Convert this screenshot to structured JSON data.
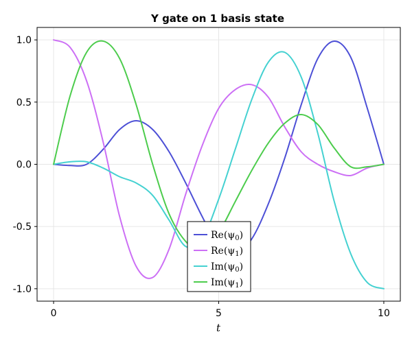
{
  "chart_data": {
    "type": "line",
    "title": "Y gate on 1 basis state",
    "xlabel": "t",
    "ylabel": "",
    "xlim": [
      -0.5,
      10.5
    ],
    "ylim": [
      -1.1,
      1.1
    ],
    "xticks": [
      0,
      5,
      10
    ],
    "xtick_labels": [
      "0",
      "5",
      "10"
    ],
    "yticks": [
      1.0,
      0.5,
      0.0,
      -0.5,
      -1.0
    ],
    "ytick_labels": [
      "1.0",
      "0.5",
      "0.0",
      "-0.5",
      "-1.0"
    ],
    "grid": true,
    "legend_placement": "bottom-center",
    "series": [
      {
        "name": "Re(ψ0)",
        "legend_main": "Re(ψ",
        "legend_sub": "0",
        "color": "#4c4fd6",
        "x": [
          0,
          0.5,
          1,
          1.5,
          2,
          2.5,
          3,
          3.5,
          4,
          4.5,
          5,
          5.5,
          6,
          6.5,
          7,
          7.5,
          8,
          8.5,
          9,
          9.5,
          10
        ],
        "y": [
          0.0,
          -0.01,
          0.0,
          0.12,
          0.28,
          0.35,
          0.28,
          0.1,
          -0.15,
          -0.42,
          -0.66,
          -0.72,
          -0.6,
          -0.32,
          0.05,
          0.48,
          0.85,
          0.99,
          0.86,
          0.45,
          0.0
        ]
      },
      {
        "name": "Re(ψ1)",
        "legend_main": "Re(ψ",
        "legend_sub": "1",
        "color": "#cc6ff5",
        "x": [
          0,
          0.5,
          1,
          1.5,
          2,
          2.5,
          3,
          3.5,
          4,
          4.5,
          5,
          5.5,
          6,
          6.5,
          7,
          7.5,
          8,
          8.5,
          9,
          9.5,
          10
        ],
        "y": [
          1.0,
          0.94,
          0.67,
          0.18,
          -0.42,
          -0.82,
          -0.91,
          -0.68,
          -0.24,
          0.15,
          0.45,
          0.6,
          0.64,
          0.54,
          0.3,
          0.1,
          0.0,
          -0.06,
          -0.09,
          -0.03,
          0.0
        ]
      },
      {
        "name": "Im(ψ0)",
        "legend_main": "Im(ψ",
        "legend_sub": "0",
        "color": "#44d1d1",
        "x": [
          0,
          0.5,
          1,
          1.5,
          2,
          2.5,
          3,
          3.5,
          4,
          4.5,
          5,
          5.5,
          6,
          6.5,
          7,
          7.5,
          8,
          8.5,
          9,
          9.5,
          10
        ],
        "y": [
          0.0,
          0.02,
          0.02,
          -0.03,
          -0.1,
          -0.15,
          -0.25,
          -0.45,
          -0.66,
          -0.6,
          -0.28,
          0.12,
          0.52,
          0.82,
          0.9,
          0.7,
          0.25,
          -0.3,
          -0.72,
          -0.95,
          -1.0
        ]
      },
      {
        "name": "Im(ψ1)",
        "legend_main": "Im(ψ",
        "legend_sub": "1",
        "color": "#4ccc4c",
        "x": [
          0,
          0.5,
          1,
          1.5,
          2,
          2.5,
          3,
          3.5,
          4,
          4.5,
          5,
          5.5,
          6,
          6.5,
          7,
          7.5,
          8,
          8.5,
          9,
          9.5,
          10
        ],
        "y": [
          0.0,
          0.55,
          0.9,
          0.99,
          0.85,
          0.48,
          0.0,
          -0.4,
          -0.62,
          -0.7,
          -0.55,
          -0.3,
          -0.05,
          0.17,
          0.33,
          0.4,
          0.32,
          0.13,
          -0.02,
          -0.02,
          0.0
        ]
      }
    ]
  }
}
